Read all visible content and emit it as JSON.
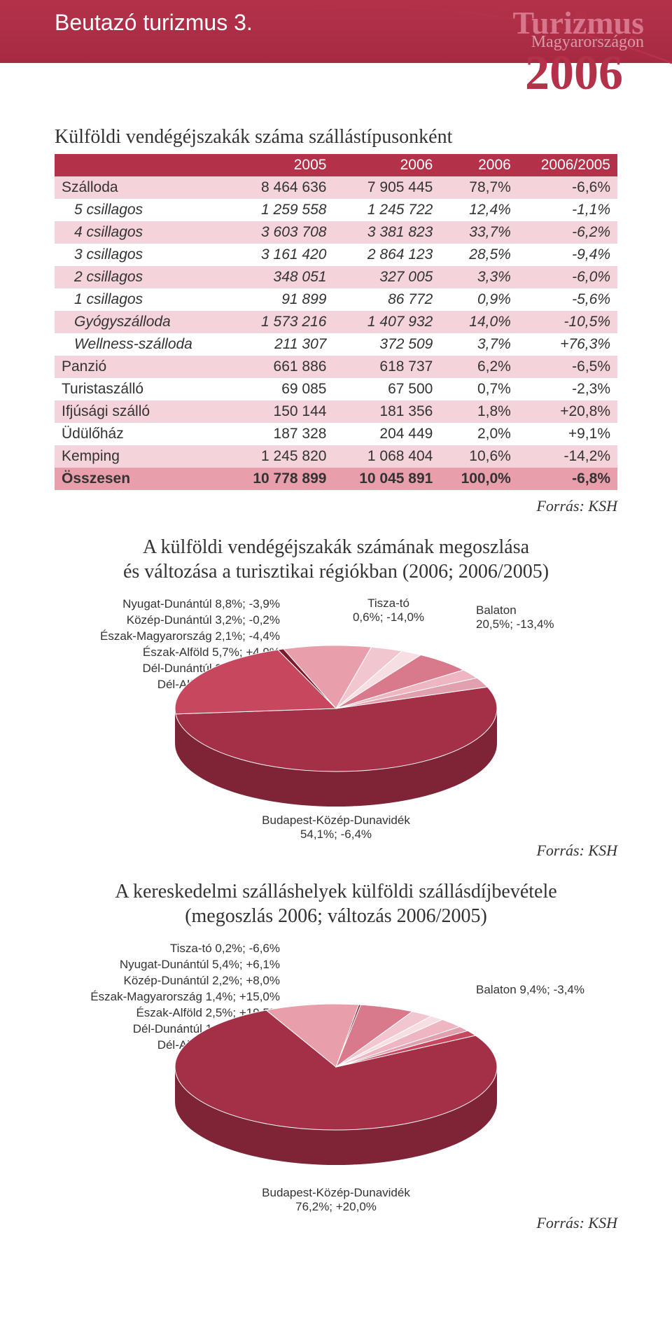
{
  "header": {
    "title": "Beutazó turizmus 3."
  },
  "logo": {
    "main": "Turizmus",
    "sub": "Magyarországon",
    "year": "2006"
  },
  "table": {
    "title": "Külföldi vendégéjszakák száma szállástípusonként",
    "columns": [
      "",
      "2005",
      "2006",
      "2006",
      "2006/2005"
    ],
    "rows": [
      {
        "pink": true,
        "cells": [
          "Szálloda",
          "8 464 636",
          "7 905 445",
          "78,7%",
          "-6,6%"
        ]
      },
      {
        "pink": false,
        "italic": true,
        "cells": [
          "5 csillagos",
          "1 259 558",
          "1 245 722",
          "12,4%",
          "-1,1%"
        ],
        "indent": true
      },
      {
        "pink": true,
        "italic": true,
        "cells": [
          "4 csillagos",
          "3 603 708",
          "3 381 823",
          "33,7%",
          "-6,2%"
        ],
        "indent": true
      },
      {
        "pink": false,
        "italic": true,
        "cells": [
          "3 csillagos",
          "3 161 420",
          "2 864 123",
          "28,5%",
          "-9,4%"
        ],
        "indent": true
      },
      {
        "pink": true,
        "italic": true,
        "cells": [
          "2 csillagos",
          "348 051",
          "327 005",
          "3,3%",
          "-6,0%"
        ],
        "indent": true
      },
      {
        "pink": false,
        "italic": true,
        "cells": [
          "1 csillagos",
          "91 899",
          "86 772",
          "0,9%",
          "-5,6%"
        ],
        "indent": true
      },
      {
        "pink": true,
        "italic": true,
        "cells": [
          "Gyógyszálloda",
          "1 573 216",
          "1 407 932",
          "14,0%",
          "-10,5%"
        ],
        "indent": true
      },
      {
        "pink": false,
        "italic": true,
        "cells": [
          "Wellness-szálloda",
          "211 307",
          "372 509",
          "3,7%",
          "+76,3%"
        ],
        "indent": true
      },
      {
        "pink": true,
        "cells": [
          "Panzió",
          "661 886",
          "618 737",
          "6,2%",
          "-6,5%"
        ]
      },
      {
        "pink": false,
        "cells": [
          "Turistaszálló",
          "69 085",
          "67 500",
          "0,7%",
          "-2,3%"
        ]
      },
      {
        "pink": true,
        "cells": [
          "Ifjúsági szálló",
          "150 144",
          "181 356",
          "1,8%",
          "+20,8%"
        ]
      },
      {
        "pink": false,
        "cells": [
          "Üdülőház",
          "187 328",
          "204 449",
          "2,0%",
          "+9,1%"
        ]
      },
      {
        "pink": true,
        "cells": [
          "Kemping",
          "1 245 820",
          "1 068 404",
          "10,6%",
          "-14,2%"
        ]
      },
      {
        "total": true,
        "cells": [
          "Összesen",
          "10 778 899",
          "10 045 891",
          "100,0%",
          "-6,8%"
        ]
      }
    ]
  },
  "source": "Forrás: KSH",
  "chart1": {
    "title": "A külföldi vendégéjszakák számának megoszlása\nés változása a turisztikai régiókban (2006; 2006/2005)",
    "type": "pie",
    "slices": [
      {
        "label": "Budapest-Közép-Dunavidék 54,1%; -6,4%",
        "value": 54.1,
        "color": "#a33046"
      },
      {
        "label": "Balaton 20,5%; -13,4%",
        "value": 20.5,
        "color": "#c7475f"
      },
      {
        "label": "Tisza-tó 0,6%; -14,0%",
        "value": 0.6,
        "color": "#7a1a2e"
      },
      {
        "label": "Nyugat-Dunántúl 8,8%; -3,9%",
        "value": 8.8,
        "color": "#e89eab"
      },
      {
        "label": "Közép-Dunántúl 3,2%; -0,2%",
        "value": 3.2,
        "color": "#f2c6cf"
      },
      {
        "label": "Észak-Magyarország 2,1%; -4,4%",
        "value": 2.1,
        "color": "#f7dee3"
      },
      {
        "label": "Észak-Alföld 5,7%; +4,9%",
        "value": 5.7,
        "color": "#d87a8c"
      },
      {
        "label": "Dél-Dunántúl 2,4%; -6,4%",
        "value": 2.4,
        "color": "#eeb6c1"
      },
      {
        "label": "Dél-Alföld 2,5%; +1,6%",
        "value": 2.5,
        "color": "#e1a0ad"
      }
    ],
    "left_labels": [
      "Nyugat-Dunántúl 8,8%; -3,9%",
      "Közép-Dunántúl 3,2%; -0,2%",
      "Észak-Magyarország 2,1%; -4,4%",
      "Észak-Alföld 5,7%; +4,9%",
      "Dél-Dunántúl 2,4%; -6,4%",
      "Dél-Alföld 2,5%; +1,6%"
    ],
    "tisza": "Tisza-tó\n0,6%; -14,0%",
    "balaton": "Balaton\n20,5%; -13,4%",
    "bottom": "Budapest-Közép-Dunavidék\n54,1%; -6,4%",
    "rim_color": "#7e2436",
    "background_color": "#ffffff"
  },
  "chart2": {
    "title": "A kereskedelmi szálláshelyek külföldi szállásdíjbevétele\n(megoszlás 2006; változás 2006/2005)",
    "type": "pie",
    "slices": [
      {
        "label": "Budapest-Közép-Dunavidék 76,2%; +20,0%",
        "value": 76.2,
        "color": "#a33046"
      },
      {
        "label": "Balaton 9,4%; -3,4%",
        "value": 9.4,
        "color": "#e89eab"
      },
      {
        "label": "Tisza-tó 0,2%; -6,6%",
        "value": 0.2,
        "color": "#7a1a2e"
      },
      {
        "label": "Nyugat-Dunántúl 5,4%; +6,1%",
        "value": 5.4,
        "color": "#d87a8c"
      },
      {
        "label": "Közép-Dunántúl 2,2%; +8,0%",
        "value": 2.2,
        "color": "#f2c6cf"
      },
      {
        "label": "Észak-Magyarország 1,4%; +15,0%",
        "value": 1.4,
        "color": "#f7dee3"
      },
      {
        "label": "Észak-Alföld 2,5%; +19,5%",
        "value": 2.5,
        "color": "#eeb6c1"
      },
      {
        "label": "Dél-Dunántúl 1,3%; +13,3%",
        "value": 1.3,
        "color": "#e1a0ad"
      },
      {
        "label": "Dél-Alföld 1,4%; +9,9%",
        "value": 1.4,
        "color": "#c7475f"
      }
    ],
    "left_labels": [
      "Tisza-tó 0,2%; -6,6%",
      "Nyugat-Dunántúl 5,4%; +6,1%",
      "Közép-Dunántúl 2,2%; +8,0%",
      "Észak-Magyarország 1,4%; +15,0%",
      "Észak-Alföld 2,5%; +19,5%",
      "Dél-Dunántúl 1,3%; +13,3%",
      "Dél-Alföld 1,4%; +9,9%"
    ],
    "balaton": "Balaton 9,4%; -3,4%",
    "bottom": "Budapest-Közép-Dunavidék\n76,2%; +20,0%",
    "rim_color": "#7e2436",
    "background_color": "#ffffff"
  }
}
